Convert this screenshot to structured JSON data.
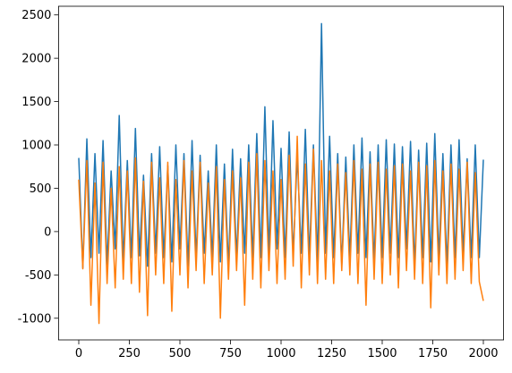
{
  "chart_data": {
    "type": "line",
    "x": [
      0,
      20,
      40,
      60,
      80,
      100,
      120,
      140,
      160,
      180,
      200,
      220,
      240,
      260,
      280,
      300,
      320,
      340,
      360,
      380,
      400,
      420,
      440,
      460,
      480,
      500,
      520,
      540,
      560,
      580,
      600,
      620,
      640,
      660,
      680,
      700,
      720,
      740,
      760,
      780,
      800,
      820,
      840,
      860,
      880,
      900,
      920,
      940,
      960,
      980,
      1000,
      1020,
      1040,
      1060,
      1080,
      1100,
      1120,
      1140,
      1160,
      1180,
      1200,
      1220,
      1240,
      1260,
      1280,
      1300,
      1320,
      1340,
      1360,
      1380,
      1400,
      1420,
      1440,
      1460,
      1480,
      1500,
      1520,
      1540,
      1560,
      1580,
      1600,
      1620,
      1640,
      1660,
      1680,
      1700,
      1720,
      1740,
      1760,
      1780,
      1800,
      1820,
      1840,
      1860,
      1880,
      1900,
      1920,
      1940,
      1960,
      1980,
      2000
    ],
    "series": [
      {
        "color": "#1f77b4",
        "values": [
          850,
          -420,
          1070,
          -300,
          900,
          -250,
          1050,
          -380,
          700,
          -200,
          1340,
          -350,
          820,
          -300,
          1190,
          -280,
          650,
          -400,
          900,
          -250,
          980,
          -300,
          760,
          -350,
          1000,
          -200,
          900,
          -400,
          1050,
          -300,
          880,
          -250,
          700,
          -300,
          1000,
          -350,
          780,
          -400,
          950,
          -300,
          840,
          -250,
          1000,
          -300,
          1130,
          -300,
          1440,
          -250,
          1280,
          -200,
          960,
          -300,
          1150,
          -280,
          880,
          -250,
          1180,
          -300,
          1000,
          -350,
          2400,
          -250,
          1100,
          -300,
          900,
          -380,
          860,
          -300,
          1000,
          -250,
          1080,
          -300,
          920,
          -350,
          1000,
          -300,
          1060,
          -250,
          1010,
          -300,
          980,
          -200,
          1040,
          -400,
          940,
          -300,
          1020,
          -350,
          1130,
          -300,
          900,
          -400,
          1000,
          -300,
          1060,
          -250,
          840,
          -300,
          1000,
          -300,
          830
        ]
      },
      {
        "color": "#ff7f0e",
        "values": [
          600,
          -430,
          820,
          -850,
          560,
          -1060,
          800,
          -600,
          500,
          -650,
          750,
          -550,
          700,
          -600,
          850,
          -700,
          580,
          -970,
          800,
          -500,
          620,
          -600,
          800,
          -920,
          600,
          -500,
          820,
          -650,
          700,
          -450,
          800,
          -600,
          560,
          -500,
          750,
          -1000,
          600,
          -550,
          700,
          -450,
          620,
          -850,
          800,
          -550,
          900,
          -650,
          820,
          -450,
          700,
          -600,
          600,
          -550,
          880,
          -400,
          1100,
          -650,
          780,
          -500,
          950,
          -600,
          820,
          -550,
          700,
          -600,
          780,
          -450,
          680,
          -500,
          820,
          -600,
          720,
          -850,
          780,
          -550,
          800,
          -600,
          720,
          -500,
          760,
          -650,
          780,
          -450,
          700,
          -550,
          800,
          -600,
          760,
          -880,
          820,
          -500,
          700,
          -600,
          780,
          -550,
          720,
          -450,
          800,
          -600,
          680,
          -580,
          -800
        ]
      }
    ],
    "xlim": [
      -100,
      2100
    ],
    "ylim": [
      -1250,
      2600
    ],
    "xticks": [
      0,
      250,
      500,
      750,
      1000,
      1250,
      1500,
      1750,
      2000
    ],
    "yticks": [
      -1000,
      -500,
      0,
      500,
      1000,
      1500,
      2000,
      2500
    ]
  }
}
